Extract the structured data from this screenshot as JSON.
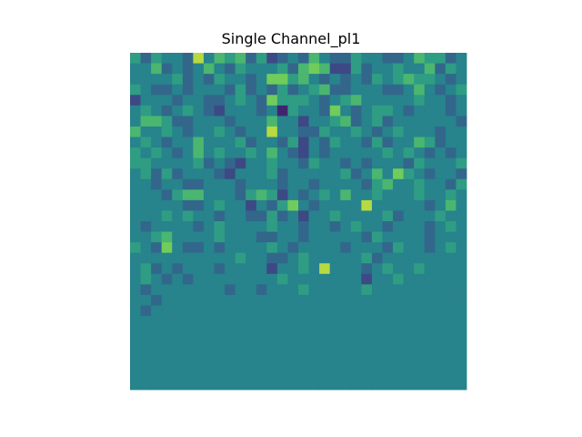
{
  "figure": {
    "background": "#ffffff"
  },
  "chart_data": {
    "type": "heatmap",
    "title": "Single Channel_pl1",
    "xlabel": "",
    "ylabel": "",
    "axis_visible": false,
    "colormap": "viridis",
    "colormap_stops": [
      "#440154",
      "#3b528b",
      "#21918c",
      "#5ec962",
      "#fde725"
    ],
    "vmin": 0,
    "vmax": 9,
    "rows": 32,
    "cols": 32,
    "values": [
      [
        5,
        3,
        5,
        4,
        4,
        3,
        8,
        4,
        6,
        5,
        6,
        3,
        5,
        2,
        3,
        4,
        3,
        6,
        4,
        3,
        3,
        5,
        4,
        4,
        3,
        3,
        4,
        6,
        5,
        5,
        3,
        4
      ],
      [
        4,
        4,
        6,
        3,
        4,
        3,
        4,
        6,
        4,
        3,
        5,
        4,
        4,
        4,
        5,
        3,
        6,
        7,
        6,
        2,
        2,
        5,
        3,
        4,
        4,
        5,
        4,
        4,
        6,
        3,
        5,
        4
      ],
      [
        4,
        4,
        4,
        4,
        5,
        3,
        4,
        3,
        5,
        4,
        4,
        3,
        4,
        7,
        7,
        5,
        6,
        4,
        3,
        4,
        3,
        4,
        3,
        5,
        4,
        5,
        6,
        5,
        5,
        4,
        3,
        4
      ],
      [
        5,
        4,
        3,
        3,
        4,
        3,
        4,
        4,
        4,
        3,
        5,
        3,
        4,
        3,
        5,
        3,
        4,
        5,
        6,
        3,
        3,
        4,
        4,
        4,
        3,
        3,
        4,
        6,
        4,
        3,
        4,
        5
      ],
      [
        2,
        4,
        4,
        4,
        3,
        4,
        4,
        3,
        3,
        4,
        5,
        4,
        3,
        7,
        5,
        5,
        5,
        4,
        3,
        4,
        5,
        6,
        4,
        4,
        4,
        4,
        4,
        5,
        4,
        4,
        3,
        4
      ],
      [
        4,
        5,
        4,
        3,
        4,
        5,
        4,
        3,
        2,
        4,
        4,
        4,
        3,
        4,
        1,
        5,
        4,
        4,
        3,
        7,
        4,
        3,
        4,
        5,
        5,
        4,
        3,
        4,
        4,
        4,
        3,
        4
      ],
      [
        4,
        6,
        6,
        5,
        3,
        3,
        4,
        4,
        4,
        3,
        4,
        4,
        4,
        6,
        4,
        4,
        2,
        4,
        4,
        5,
        6,
        3,
        4,
        5,
        3,
        4,
        4,
        4,
        4,
        4,
        4,
        3
      ],
      [
        6,
        4,
        4,
        5,
        4,
        3,
        4,
        4,
        5,
        4,
        3,
        4,
        4,
        8,
        4,
        4,
        3,
        3,
        5,
        4,
        4,
        5,
        4,
        3,
        4,
        5,
        4,
        4,
        4,
        3,
        4,
        4
      ],
      [
        4,
        5,
        4,
        3,
        4,
        4,
        6,
        4,
        4,
        4,
        5,
        3,
        4,
        4,
        3,
        5,
        2,
        4,
        3,
        5,
        4,
        4,
        3,
        5,
        3,
        4,
        4,
        6,
        5,
        3,
        4,
        4
      ],
      [
        5,
        4,
        5,
        4,
        3,
        4,
        6,
        4,
        5,
        4,
        4,
        5,
        4,
        6,
        4,
        3,
        2,
        4,
        3,
        4,
        4,
        4,
        4,
        4,
        5,
        4,
        5,
        4,
        3,
        4,
        3,
        4
      ],
      [
        5,
        5,
        4,
        4,
        4,
        4,
        5,
        3,
        4,
        3,
        2,
        4,
        4,
        5,
        4,
        4,
        3,
        5,
        4,
        4,
        3,
        4,
        3,
        4,
        4,
        4,
        3,
        5,
        4,
        4,
        4,
        5
      ],
      [
        4,
        5,
        3,
        5,
        3,
        4,
        4,
        4,
        3,
        2,
        4,
        4,
        4,
        5,
        3,
        4,
        4,
        4,
        4,
        4,
        5,
        3,
        4,
        6,
        4,
        7,
        5,
        4,
        3,
        4,
        4,
        3
      ],
      [
        4,
        4,
        3,
        4,
        4,
        3,
        3,
        4,
        4,
        4,
        3,
        4,
        4,
        4,
        3,
        4,
        4,
        3,
        4,
        4,
        4,
        4,
        3,
        5,
        6,
        4,
        4,
        5,
        4,
        4,
        3,
        5
      ],
      [
        4,
        4,
        4,
        3,
        5,
        6,
        6,
        4,
        4,
        4,
        3,
        5,
        6,
        5,
        2,
        4,
        3,
        4,
        5,
        4,
        6,
        4,
        4,
        5,
        4,
        4,
        4,
        5,
        4,
        4,
        5,
        4
      ],
      [
        4,
        4,
        4,
        4,
        4,
        3,
        3,
        4,
        5,
        4,
        4,
        2,
        4,
        3,
        5,
        7,
        4,
        3,
        4,
        4,
        4,
        4,
        8,
        4,
        4,
        4,
        4,
        4,
        3,
        4,
        6,
        4
      ],
      [
        4,
        4,
        4,
        5,
        4,
        5,
        4,
        4,
        3,
        4,
        4,
        3,
        3,
        5,
        3,
        4,
        2,
        4,
        4,
        5,
        4,
        4,
        4,
        4,
        5,
        3,
        4,
        4,
        4,
        5,
        4,
        4
      ],
      [
        4,
        3,
        4,
        4,
        4,
        4,
        3,
        4,
        5,
        4,
        4,
        4,
        4,
        5,
        4,
        4,
        3,
        4,
        4,
        3,
        4,
        5,
        4,
        4,
        3,
        4,
        4,
        4,
        3,
        4,
        5,
        4
      ],
      [
        4,
        4,
        5,
        6,
        4,
        4,
        4,
        4,
        5,
        4,
        4,
        4,
        3,
        3,
        4,
        4,
        3,
        4,
        4,
        4,
        4,
        4,
        3,
        5,
        4,
        4,
        4,
        4,
        3,
        4,
        4,
        4
      ],
      [
        5,
        4,
        3,
        7,
        4,
        3,
        3,
        4,
        3,
        4,
        4,
        4,
        4,
        5,
        4,
        3,
        4,
        4,
        4,
        4,
        3,
        4,
        4,
        4,
        3,
        5,
        4,
        4,
        3,
        4,
        5,
        4
      ],
      [
        4,
        4,
        4,
        4,
        4,
        4,
        4,
        4,
        4,
        4,
        5,
        4,
        4,
        3,
        3,
        4,
        5,
        4,
        4,
        4,
        4,
        4,
        5,
        3,
        4,
        4,
        4,
        4,
        4,
        4,
        4,
        4
      ],
      [
        4,
        5,
        3,
        4,
        3,
        4,
        4,
        4,
        3,
        4,
        4,
        4,
        4,
        2,
        4,
        4,
        5,
        4,
        8,
        4,
        4,
        4,
        3,
        4,
        5,
        4,
        4,
        5,
        4,
        4,
        4,
        4
      ],
      [
        4,
        5,
        4,
        3,
        4,
        3,
        4,
        4,
        4,
        4,
        4,
        4,
        4,
        4,
        5,
        4,
        4,
        4,
        4,
        4,
        4,
        4,
        2,
        4,
        4,
        5,
        4,
        4,
        4,
        4,
        4,
        4
      ],
      [
        4,
        3,
        4,
        4,
        4,
        4,
        4,
        4,
        4,
        3,
        4,
        4,
        3,
        4,
        4,
        4,
        5,
        4,
        4,
        4,
        4,
        4,
        5,
        4,
        4,
        4,
        4,
        4,
        4,
        4,
        4,
        4
      ],
      [
        4,
        4,
        3,
        4,
        4,
        4,
        4,
        4,
        4,
        4,
        4,
        4,
        4,
        4,
        4,
        4,
        4,
        4,
        4,
        4,
        4,
        4,
        4,
        4,
        4,
        4,
        4,
        4,
        4,
        4,
        4,
        4
      ],
      [
        4,
        3,
        4,
        4,
        4,
        4,
        4,
        4,
        4,
        4,
        4,
        4,
        4,
        4,
        4,
        4,
        4,
        4,
        4,
        4,
        4,
        4,
        4,
        4,
        4,
        4,
        4,
        4,
        4,
        4,
        4,
        4
      ],
      [
        4,
        4,
        4,
        4,
        4,
        4,
        4,
        4,
        4,
        4,
        4,
        4,
        4,
        4,
        4,
        4,
        4,
        4,
        4,
        4,
        4,
        4,
        4,
        4,
        4,
        4,
        4,
        4,
        4,
        4,
        4,
        4
      ],
      [
        4,
        4,
        4,
        4,
        4,
        4,
        4,
        4,
        4,
        4,
        4,
        4,
        4,
        4,
        4,
        4,
        4,
        4,
        4,
        4,
        4,
        4,
        4,
        4,
        4,
        4,
        4,
        4,
        4,
        4,
        4,
        4
      ],
      [
        4,
        4,
        4,
        4,
        4,
        4,
        4,
        4,
        4,
        4,
        4,
        4,
        4,
        4,
        4,
        4,
        4,
        4,
        4,
        4,
        4,
        4,
        4,
        4,
        4,
        4,
        4,
        4,
        4,
        4,
        4,
        4
      ],
      [
        4,
        4,
        4,
        4,
        4,
        4,
        4,
        4,
        4,
        4,
        4,
        4,
        4,
        4,
        4,
        4,
        4,
        4,
        4,
        4,
        4,
        4,
        4,
        4,
        4,
        4,
        4,
        4,
        4,
        4,
        4,
        4
      ],
      [
        4,
        4,
        4,
        4,
        4,
        4,
        4,
        4,
        4,
        4,
        4,
        4,
        4,
        4,
        4,
        4,
        4,
        4,
        4,
        4,
        4,
        4,
        4,
        4,
        4,
        4,
        4,
        4,
        4,
        4,
        4,
        4
      ],
      [
        4,
        4,
        4,
        4,
        4,
        4,
        4,
        4,
        4,
        4,
        4,
        4,
        4,
        4,
        4,
        4,
        4,
        4,
        4,
        4,
        4,
        4,
        4,
        4,
        4,
        4,
        4,
        4,
        4,
        4,
        4,
        4
      ],
      [
        4,
        4,
        4,
        4,
        4,
        4,
        4,
        4,
        4,
        4,
        4,
        4,
        4,
        4,
        4,
        4,
        4,
        4,
        4,
        4,
        4,
        4,
        4,
        4,
        4,
        4,
        4,
        4,
        4,
        4,
        4,
        4
      ]
    ]
  }
}
